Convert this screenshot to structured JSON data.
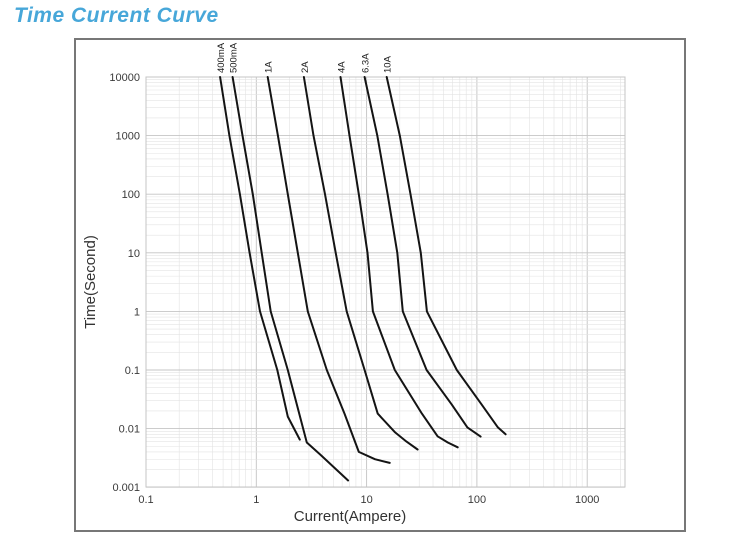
{
  "title": {
    "text": "Time Current Curve",
    "color": "#47a7d9"
  },
  "chart_data": {
    "type": "line",
    "title": "Time Current Curve",
    "xlabel": "Current(Ampere)",
    "ylabel": "Time(Second)",
    "x_scale": "log",
    "y_scale": "log",
    "xlim": [
      0.1,
      2200
    ],
    "ylim": [
      0.001,
      10000
    ],
    "x_ticks": [
      0.1,
      1,
      10,
      100,
      1000
    ],
    "y_ticks": [
      10000,
      1000,
      100,
      10,
      1,
      0.1,
      0.01,
      0.001
    ],
    "grid": true,
    "legend_position": "labels-above-curves",
    "curve_color": "#141414",
    "grid_major_color": "#c4c4c4",
    "grid_minor_color": "#e3e3e3",
    "series": [
      {
        "name": "400mA",
        "points": [
          [
            0.47,
            10000
          ],
          [
            0.57,
            1000
          ],
          [
            0.71,
            100
          ],
          [
            0.87,
            10
          ],
          [
            1.08,
            1
          ],
          [
            1.55,
            0.1
          ],
          [
            1.93,
            0.016
          ],
          [
            2.48,
            0.0065
          ]
        ]
      },
      {
        "name": "500mA",
        "points": [
          [
            0.61,
            10000
          ],
          [
            0.75,
            1000
          ],
          [
            0.93,
            100
          ],
          [
            1.12,
            10
          ],
          [
            1.35,
            1
          ],
          [
            1.93,
            0.1
          ],
          [
            2.87,
            0.0058
          ],
          [
            3.8,
            0.0036
          ],
          [
            6.8,
            0.0013
          ]
        ]
      },
      {
        "name": "1A",
        "points": [
          [
            1.27,
            10000
          ],
          [
            1.57,
            1000
          ],
          [
            1.93,
            100
          ],
          [
            2.38,
            10
          ],
          [
            2.93,
            1
          ],
          [
            4.36,
            0.1
          ],
          [
            6.3,
            0.018
          ],
          [
            8.5,
            0.004
          ],
          [
            11.9,
            0.003
          ],
          [
            16.2,
            0.0026
          ]
        ]
      },
      {
        "name": "2A",
        "points": [
          [
            2.7,
            10000
          ],
          [
            3.3,
            1000
          ],
          [
            4.2,
            100
          ],
          [
            5.25,
            10
          ],
          [
            6.6,
            1
          ],
          [
            9.6,
            0.1
          ],
          [
            12.6,
            0.018
          ],
          [
            18,
            0.0087
          ],
          [
            23,
            0.006
          ],
          [
            29,
            0.0044
          ]
        ]
      },
      {
        "name": "4A",
        "points": [
          [
            5.8,
            10000
          ],
          [
            7.0,
            1000
          ],
          [
            8.5,
            100
          ],
          [
            10.2,
            10
          ],
          [
            11.4,
            1
          ],
          [
            18,
            0.1
          ],
          [
            31.7,
            0.018
          ],
          [
            44,
            0.0074
          ],
          [
            54.5,
            0.0058
          ],
          [
            67,
            0.0048
          ]
        ]
      },
      {
        "name": "6.3A",
        "points": [
          [
            9.6,
            10000
          ],
          [
            12.5,
            1000
          ],
          [
            15.5,
            100
          ],
          [
            19,
            10
          ],
          [
            21.3,
            1
          ],
          [
            35,
            0.1
          ],
          [
            59,
            0.026
          ],
          [
            82,
            0.0105
          ],
          [
            108,
            0.0073
          ]
        ]
      },
      {
        "name": "10A",
        "points": [
          [
            15.2,
            10000
          ],
          [
            20,
            1000
          ],
          [
            25,
            100
          ],
          [
            31,
            10
          ],
          [
            35.2,
            1
          ],
          [
            65.7,
            0.1
          ],
          [
            110,
            0.026
          ],
          [
            155,
            0.0105
          ],
          [
            182,
            0.008
          ]
        ]
      }
    ]
  }
}
